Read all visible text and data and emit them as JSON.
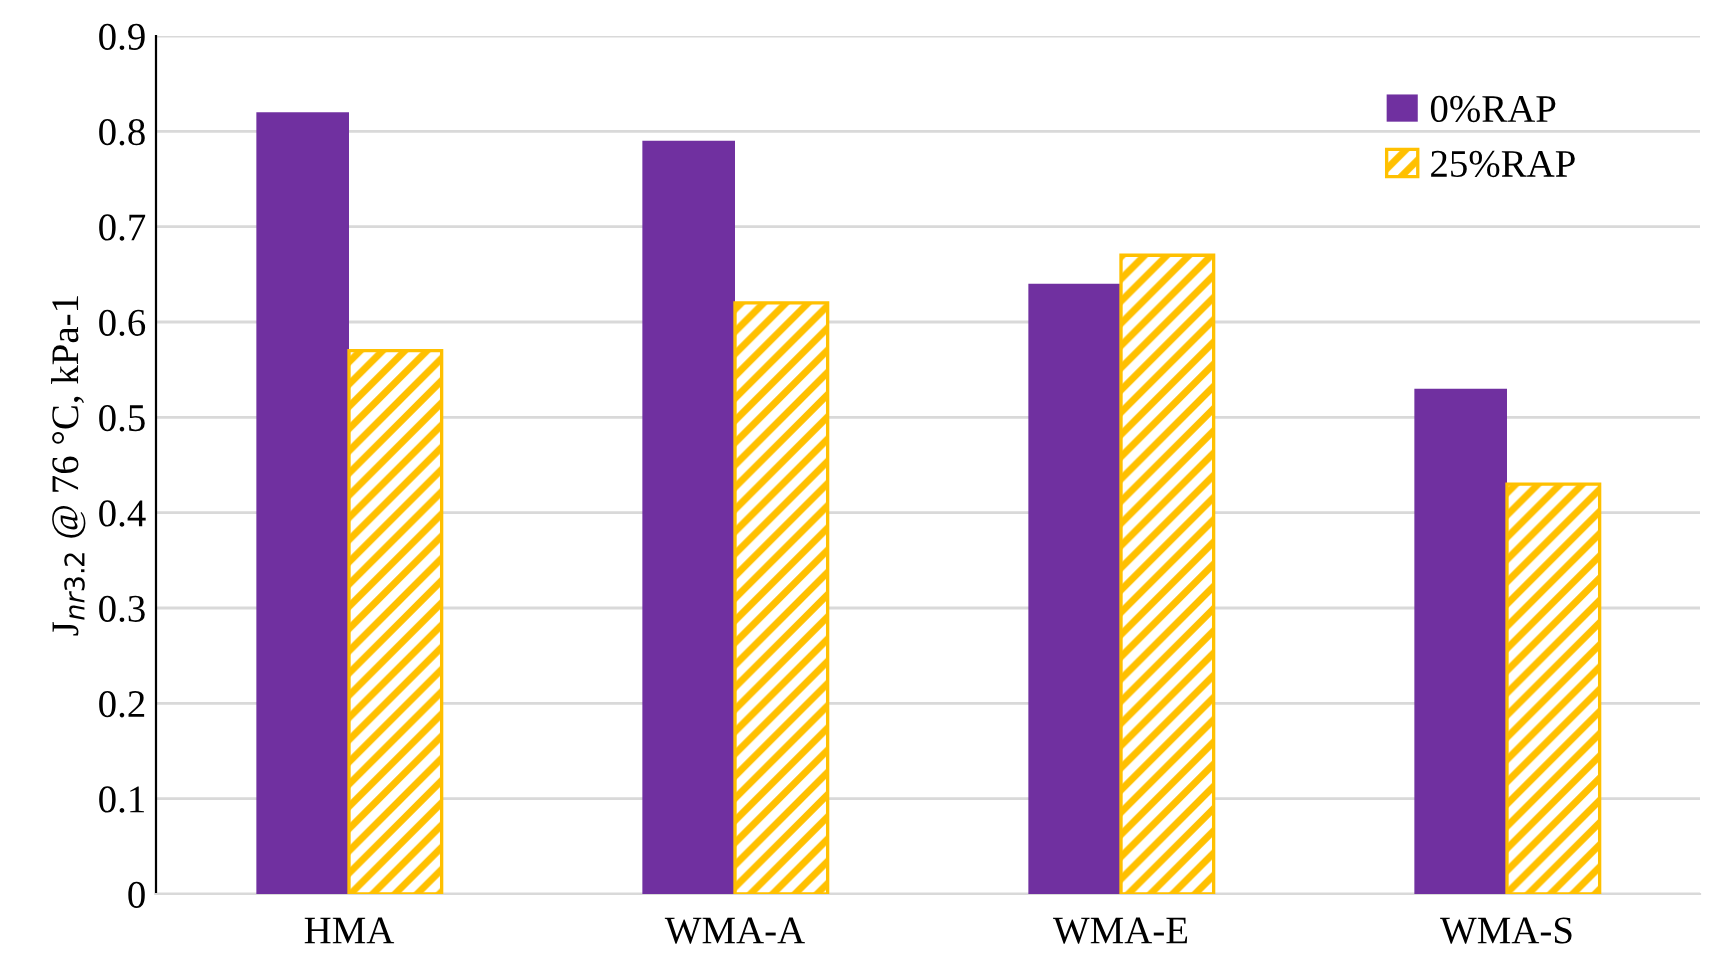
{
  "chart_data": {
    "type": "bar",
    "ylabel": "J$_{nr3.2}$ @ 76 °C, kPa-1",
    "categories": [
      "HMA",
      "WMA-A",
      "WMA-E",
      "WMA-S"
    ],
    "series": [
      {
        "name": "0%RAP",
        "color": "#7030a0",
        "values": [
          0.82,
          0.79,
          0.64,
          0.53
        ]
      },
      {
        "name": "25%RAP",
        "color": "#ffc000",
        "values": [
          0.57,
          0.62,
          0.67,
          0.43
        ]
      }
    ],
    "ylim": [
      0,
      0.9
    ],
    "yticks": [
      0,
      0.1,
      0.2,
      0.3,
      0.4,
      0.5,
      0.6,
      0.7,
      0.8,
      0.9
    ],
    "grid": "y",
    "legend": "top right"
  }
}
